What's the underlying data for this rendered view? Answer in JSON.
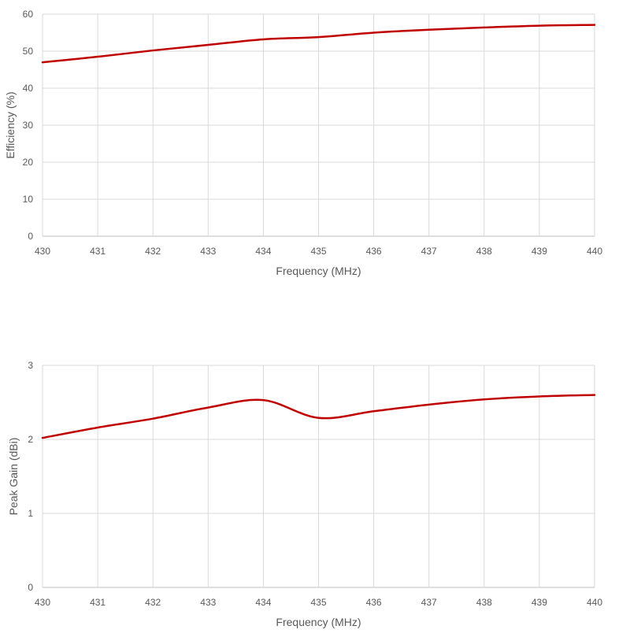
{
  "colors": {
    "series": "#C00000",
    "grid": "#D9D9D9",
    "text": "#595959"
  },
  "chart_data": [
    {
      "type": "line",
      "title": "",
      "xlabel": "Frequency (MHz)",
      "ylabel": "Efficiency (%)",
      "x": [
        430,
        431,
        432,
        433,
        434,
        435,
        436,
        437,
        438,
        439,
        440
      ],
      "xticks": [
        "430",
        "431",
        "432",
        "433",
        "434",
        "435",
        "436",
        "437",
        "438",
        "439",
        "440"
      ],
      "yticks": [
        "0",
        "10",
        "20",
        "30",
        "40",
        "50",
        "60"
      ],
      "xlim": [
        430,
        440
      ],
      "ylim": [
        0,
        60
      ],
      "grid": true,
      "legend": null,
      "series": [
        {
          "name": "Efficiency",
          "values": [
            47.0,
            48.5,
            50.2,
            51.7,
            53.2,
            53.8,
            55.0,
            55.8,
            56.4,
            56.9,
            57.1
          ]
        }
      ]
    },
    {
      "type": "line",
      "title": "",
      "xlabel": "Frequency (MHz)",
      "ylabel": "Peak Gain (dBi)",
      "x": [
        430,
        431,
        432,
        433,
        434,
        435,
        436,
        437,
        438,
        439,
        440
      ],
      "xticks": [
        "430",
        "431",
        "432",
        "433",
        "434",
        "435",
        "436",
        "437",
        "438",
        "439",
        "440"
      ],
      "yticks": [
        "0",
        "1",
        "2",
        "3"
      ],
      "xlim": [
        430,
        440
      ],
      "ylim": [
        0,
        3
      ],
      "grid": true,
      "legend": null,
      "series": [
        {
          "name": "Peak Gain",
          "values": [
            2.02,
            2.16,
            2.28,
            2.43,
            2.53,
            2.29,
            2.38,
            2.47,
            2.54,
            2.58,
            2.6
          ]
        }
      ]
    }
  ]
}
